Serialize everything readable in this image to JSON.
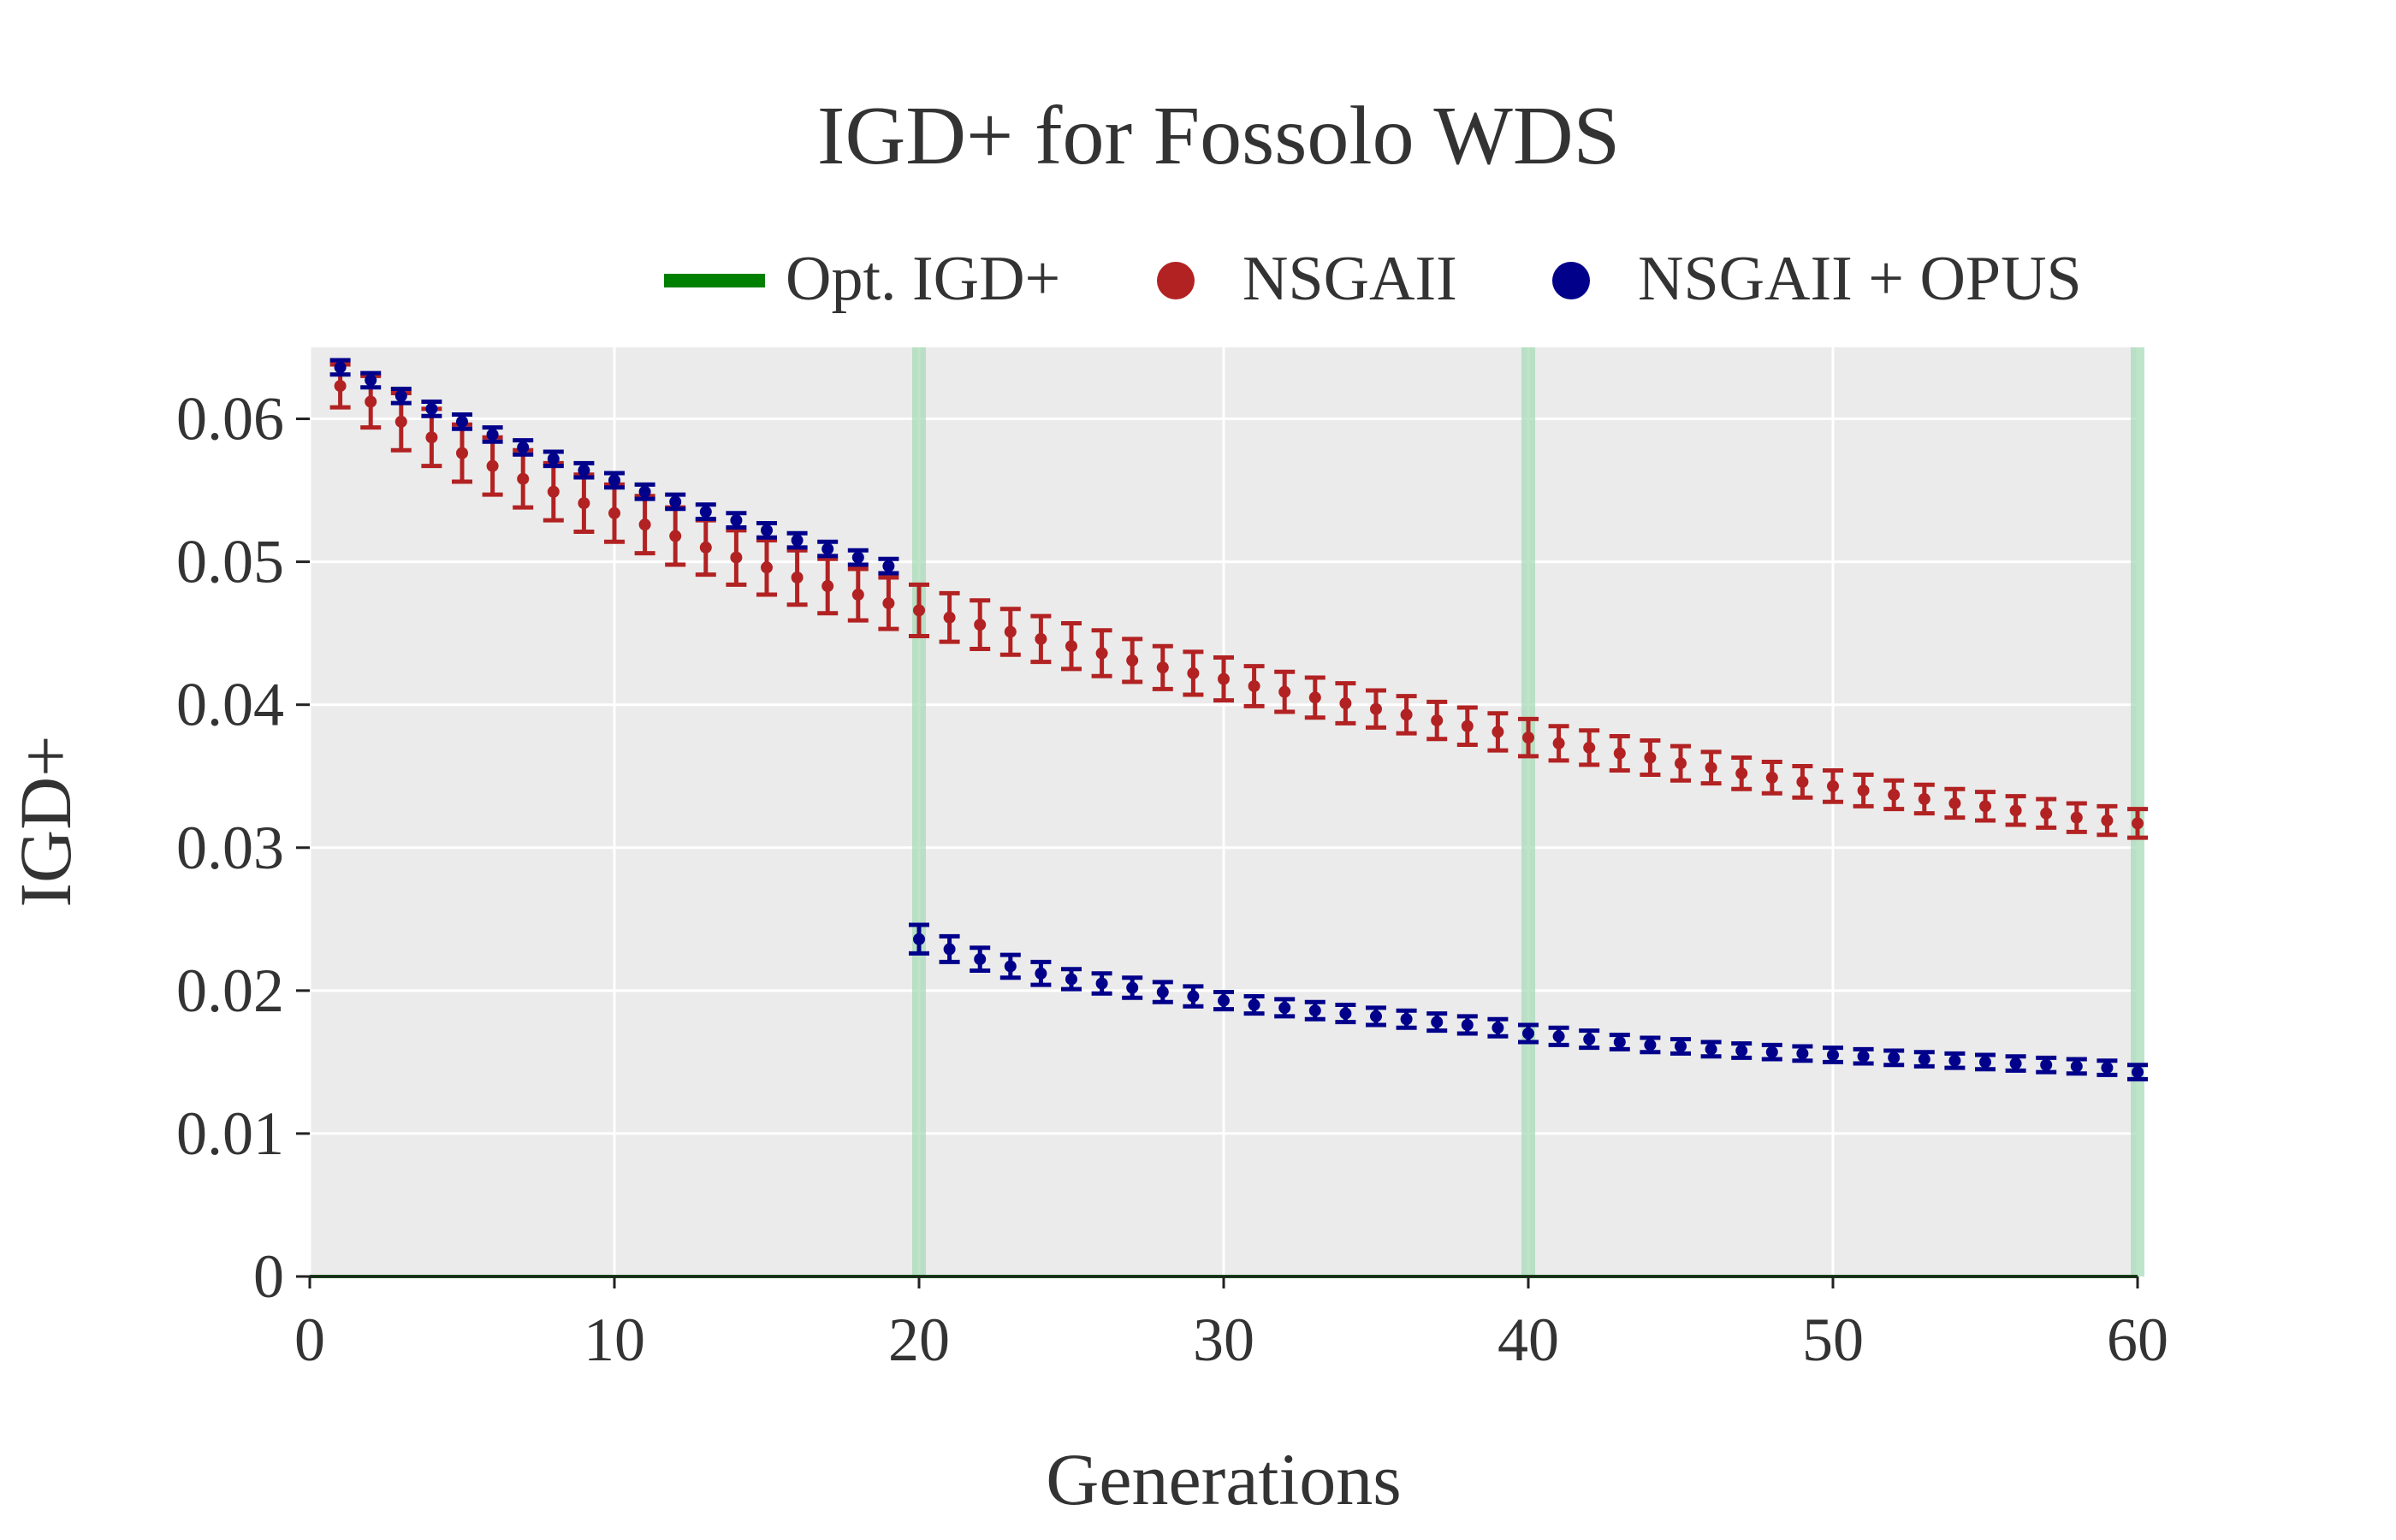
{
  "chart_data": {
    "type": "scatter",
    "title": "IGD+ for Fossolo WDS",
    "xlabel": "Generations",
    "ylabel": "IGD+",
    "xlim": [
      0,
      60
    ],
    "ylim": [
      0,
      0.065
    ],
    "xticks": [
      0,
      10,
      20,
      30,
      40,
      50,
      60
    ],
    "xtick_labels": [
      "0",
      "10",
      "20",
      "30",
      "40",
      "50",
      "60"
    ],
    "yticks": [
      0,
      0.01,
      0.02,
      0.03,
      0.04,
      0.05,
      0.06
    ],
    "ytick_labels": [
      "0",
      "0.01",
      "0.02",
      "0.03",
      "0.04",
      "0.05",
      "0.06"
    ],
    "grid": true,
    "background": "#ebebeb",
    "legend_position": "top",
    "vertical_markers": [
      20,
      40,
      60
    ],
    "vertical_marker_color": "#a8dbb8",
    "legend": [
      {
        "label": "Opt. IGD+",
        "kind": "line",
        "color": "#008000"
      },
      {
        "label": "NSGAII",
        "kind": "marker",
        "color": "#b22222"
      },
      {
        "label": "NSGAII + OPUS",
        "kind": "marker",
        "color": "#00008b"
      }
    ],
    "series": [
      {
        "name": "Opt. IGD+",
        "kind": "line",
        "color": "#008000",
        "x": [
          0,
          60
        ],
        "y": [
          0,
          0
        ]
      },
      {
        "name": "NSGAII",
        "kind": "errorbar",
        "color": "#b22222",
        "x": [
          1,
          2,
          3,
          4,
          5,
          6,
          7,
          8,
          9,
          10,
          11,
          12,
          13,
          14,
          15,
          16,
          17,
          18,
          19,
          20,
          21,
          22,
          23,
          24,
          25,
          26,
          27,
          28,
          29,
          30,
          31,
          32,
          33,
          34,
          35,
          36,
          37,
          38,
          39,
          40,
          41,
          42,
          43,
          44,
          45,
          46,
          47,
          48,
          49,
          50,
          51,
          52,
          53,
          54,
          55,
          56,
          57,
          58,
          59,
          60
        ],
        "y": [
          0.0623,
          0.0612,
          0.0598,
          0.0587,
          0.0576,
          0.0567,
          0.0558,
          0.0549,
          0.0541,
          0.0534,
          0.0526,
          0.0518,
          0.051,
          0.0503,
          0.0496,
          0.0489,
          0.0483,
          0.0477,
          0.0471,
          0.0466,
          0.0461,
          0.0456,
          0.0451,
          0.0446,
          0.0441,
          0.0436,
          0.0431,
          0.0426,
          0.0422,
          0.0418,
          0.0413,
          0.0409,
          0.0405,
          0.0401,
          0.0397,
          0.0393,
          0.0389,
          0.0385,
          0.0381,
          0.0377,
          0.0373,
          0.037,
          0.0366,
          0.0363,
          0.0359,
          0.0356,
          0.0352,
          0.0349,
          0.0346,
          0.0343,
          0.034,
          0.0337,
          0.0334,
          0.0331,
          0.0329,
          0.0326,
          0.0324,
          0.0321,
          0.0319,
          0.0317
        ],
        "err": [
          0.0015,
          0.0018,
          0.002,
          0.002,
          0.002,
          0.002,
          0.002,
          0.002,
          0.002,
          0.002,
          0.002,
          0.002,
          0.0019,
          0.0019,
          0.0019,
          0.0019,
          0.0019,
          0.0018,
          0.0018,
          0.0018,
          0.0017,
          0.0017,
          0.0016,
          0.0016,
          0.0016,
          0.0016,
          0.0015,
          0.0015,
          0.0015,
          0.0015,
          0.0014,
          0.0014,
          0.0014,
          0.0014,
          0.0013,
          0.0013,
          0.0013,
          0.0013,
          0.0013,
          0.0013,
          0.0012,
          0.0012,
          0.0012,
          0.0012,
          0.0012,
          0.0011,
          0.0011,
          0.0011,
          0.0011,
          0.0011,
          0.0011,
          0.001,
          0.001,
          0.001,
          0.001,
          0.001,
          0.001,
          0.001,
          0.001,
          0.001
        ]
      },
      {
        "name": "NSGAII + OPUS",
        "kind": "errorbar",
        "color": "#00008b",
        "x": [
          1,
          2,
          3,
          4,
          5,
          6,
          7,
          8,
          9,
          10,
          11,
          12,
          13,
          14,
          15,
          16,
          17,
          18,
          19,
          20,
          21,
          22,
          23,
          24,
          25,
          26,
          27,
          28,
          29,
          30,
          31,
          32,
          33,
          34,
          35,
          36,
          37,
          38,
          39,
          40,
          41,
          42,
          43,
          44,
          45,
          46,
          47,
          48,
          49,
          50,
          51,
          52,
          53,
          54,
          55,
          56,
          57,
          58,
          59,
          60
        ],
        "y": [
          0.0636,
          0.0627,
          0.0616,
          0.0607,
          0.0598,
          0.0589,
          0.058,
          0.0572,
          0.0564,
          0.0557,
          0.0549,
          0.0542,
          0.0535,
          0.0529,
          0.0522,
          0.0515,
          0.0509,
          0.0503,
          0.0497,
          0.0236,
          0.0229,
          0.0222,
          0.0217,
          0.0212,
          0.0208,
          0.0205,
          0.0202,
          0.0199,
          0.0196,
          0.0193,
          0.019,
          0.0188,
          0.0186,
          0.0184,
          0.0182,
          0.018,
          0.0178,
          0.0176,
          0.0174,
          0.017,
          0.0168,
          0.0166,
          0.0164,
          0.0162,
          0.0161,
          0.0159,
          0.0158,
          0.0157,
          0.0156,
          0.0155,
          0.0154,
          0.0153,
          0.0152,
          0.0151,
          0.015,
          0.0149,
          0.0148,
          0.0147,
          0.0146,
          0.0143
        ],
        "err": [
          0.0005,
          0.0005,
          0.0005,
          0.0005,
          0.0005,
          0.0005,
          0.0005,
          0.0005,
          0.0005,
          0.0005,
          0.0005,
          0.0005,
          0.0005,
          0.0005,
          0.0005,
          0.0005,
          0.0005,
          0.0005,
          0.0005,
          0.001,
          0.0009,
          0.0008,
          0.0008,
          0.0008,
          0.0007,
          0.0007,
          0.0007,
          0.0007,
          0.0007,
          0.0006,
          0.0006,
          0.0006,
          0.0006,
          0.0006,
          0.0006,
          0.0006,
          0.0006,
          0.0006,
          0.0006,
          0.0006,
          0.0006,
          0.0006,
          0.0005,
          0.0005,
          0.0005,
          0.0005,
          0.0005,
          0.0005,
          0.0005,
          0.0005,
          0.0005,
          0.0005,
          0.0005,
          0.0005,
          0.0005,
          0.0005,
          0.0005,
          0.0005,
          0.0005,
          0.0005
        ]
      }
    ]
  }
}
